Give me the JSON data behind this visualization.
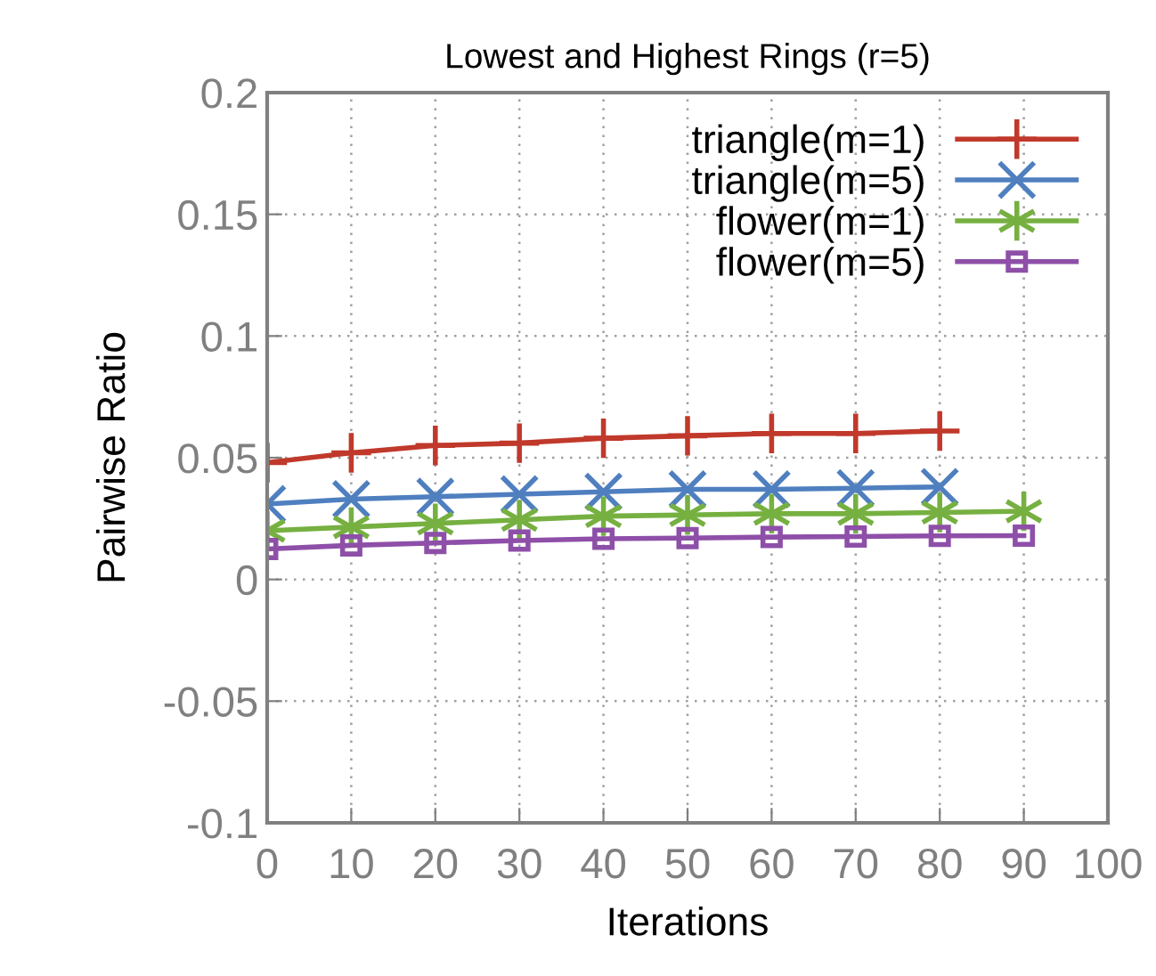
{
  "chart_data": {
    "type": "line",
    "title": "Lowest and Highest Rings (r=5)",
    "xlabel": "Iterations",
    "ylabel": "Pairwise Ratio",
    "xlim": [
      0,
      100
    ],
    "xticks": [
      0,
      10,
      20,
      30,
      40,
      50,
      60,
      70,
      80,
      90,
      100
    ],
    "ylim": [
      -0.1,
      0.2
    ],
    "yticks": [
      -0.1,
      -0.05,
      0,
      0.05,
      0.1,
      0.15,
      0.2
    ],
    "grid": true,
    "legend": "top right",
    "line_style": "solid",
    "series": [
      {
        "name": "triangle(m=1)",
        "color": "#c0392b",
        "marker": "cross",
        "x": [
          0,
          10,
          20,
          30,
          40,
          50,
          60,
          70,
          80
        ],
        "values": [
          0.048,
          0.052,
          0.055,
          0.056,
          0.058,
          0.059,
          0.06,
          0.06,
          0.061
        ]
      },
      {
        "name": "triangle(m=5)",
        "color": "#4f7fbf",
        "marker": "cross",
        "x": [
          0,
          10,
          20,
          30,
          40,
          50,
          60,
          70,
          80
        ],
        "values": [
          0.031,
          0.033,
          0.034,
          0.035,
          0.036,
          0.037,
          0.037,
          0.0375,
          0.038
        ]
      },
      {
        "name": "flower(m=1)",
        "color": "#76b041",
        "marker": "cross",
        "x": [
          0,
          10,
          20,
          30,
          40,
          50,
          60,
          70,
          80,
          90
        ],
        "values": [
          0.02,
          0.0215,
          0.023,
          0.0245,
          0.026,
          0.0265,
          0.027,
          0.027,
          0.0275,
          0.028
        ]
      },
      {
        "name": "flower(m=5)",
        "color": "#8e4fa8",
        "marker": "square",
        "x": [
          0,
          10,
          20,
          30,
          40,
          50,
          60,
          70,
          80,
          90
        ],
        "values": [
          0.0125,
          0.014,
          0.015,
          0.016,
          0.0167,
          0.017,
          0.0174,
          0.0176,
          0.0179,
          0.018
        ]
      }
    ]
  }
}
